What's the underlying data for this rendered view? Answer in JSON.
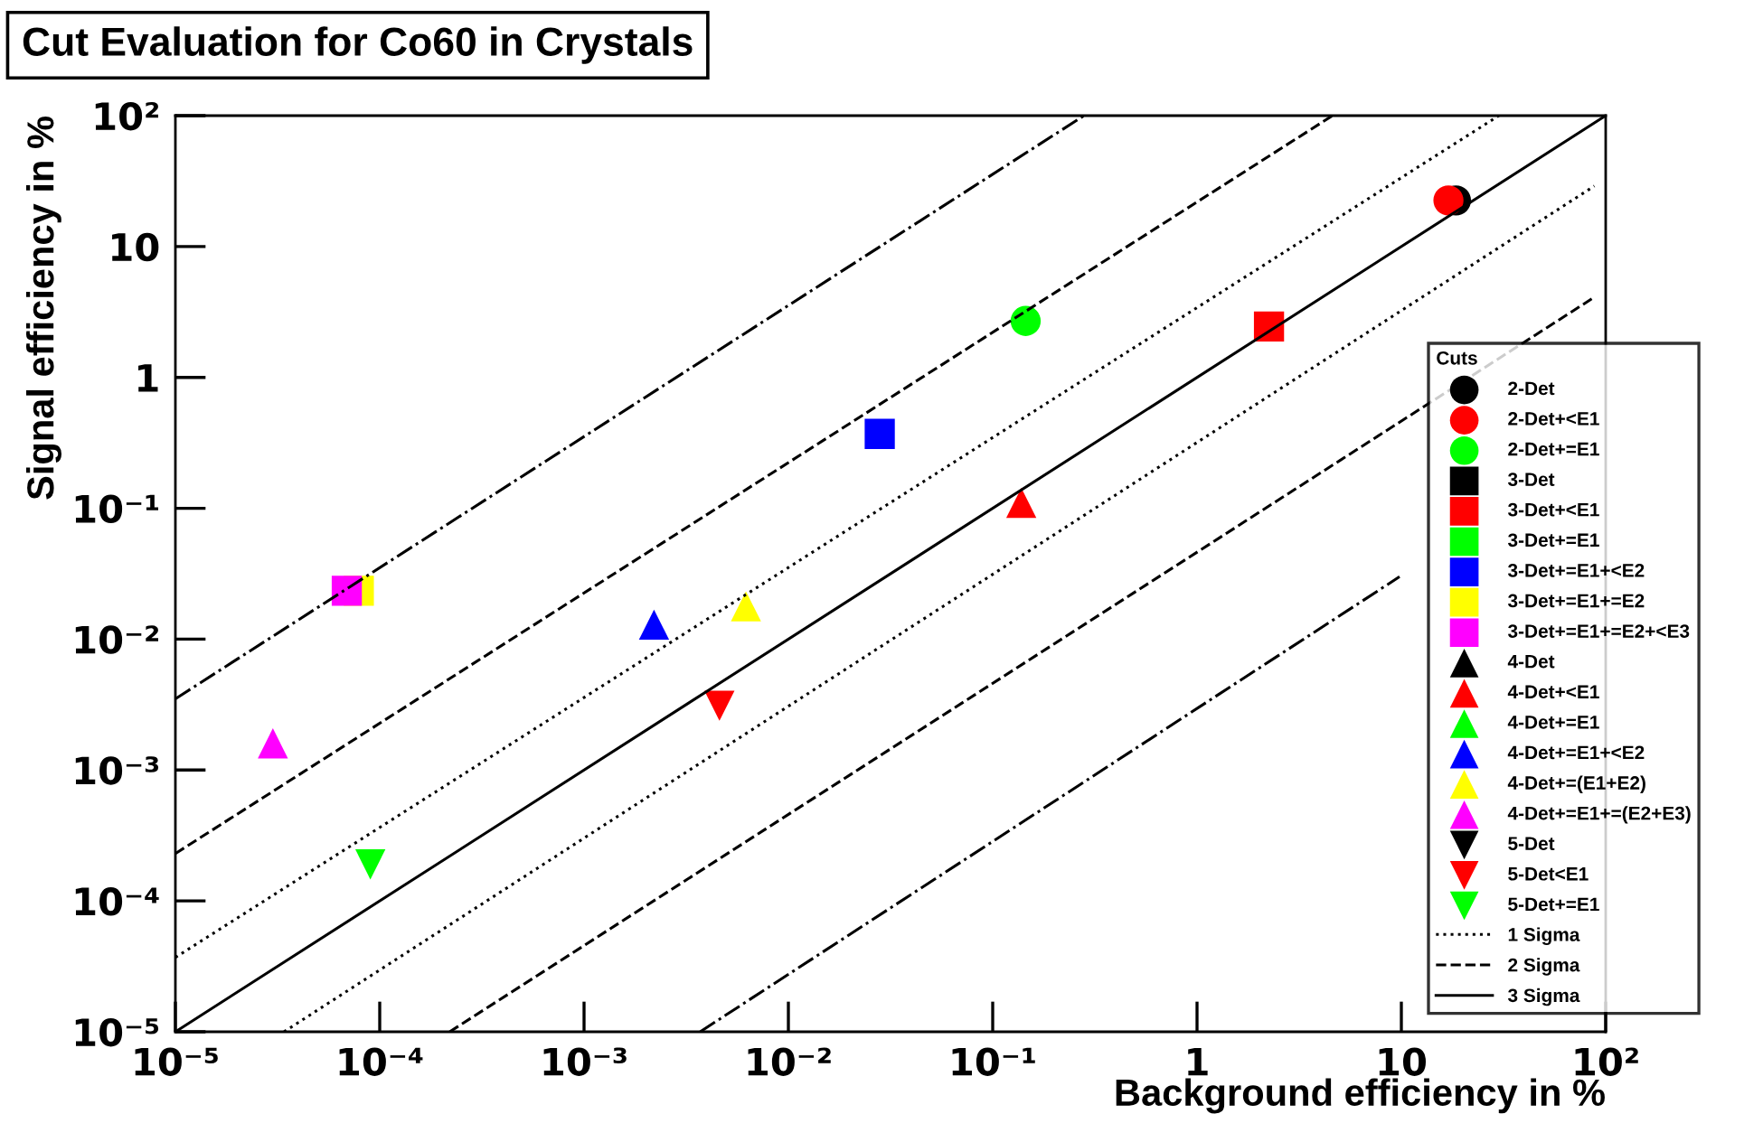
{
  "chart_data": {
    "type": "scatter",
    "title": "Cut Evaluation for Co60 in Crystals",
    "xlabel": "Background efficiency in %",
    "ylabel": "Signal efficiency in %",
    "legend_title": "Cuts",
    "log": "xy",
    "grid": false,
    "legend": "right",
    "xlim": [
      1e-05,
      100
    ],
    "ylim": [
      1e-05,
      100
    ],
    "xticks": [
      {
        "value": 1e-05,
        "label": "10⁻⁵"
      },
      {
        "value": 0.0001,
        "label": "10⁻⁴"
      },
      {
        "value": 0.001,
        "label": "10⁻³"
      },
      {
        "value": 0.01,
        "label": "10⁻²"
      },
      {
        "value": 0.1,
        "label": "10⁻¹"
      },
      1,
      10,
      {
        "value": 100,
        "label": "10²"
      }
    ],
    "yticks": [
      {
        "value": 1e-05,
        "label": "10⁻⁵"
      },
      {
        "value": 0.0001,
        "label": "10⁻⁴"
      },
      {
        "value": 0.001,
        "label": "10⁻³"
      },
      {
        "value": 0.01,
        "label": "10⁻²"
      },
      {
        "value": 0.1,
        "label": "10⁻¹"
      },
      1,
      10,
      {
        "value": 100,
        "label": "10²"
      }
    ],
    "series": [
      {
        "type": "line",
        "line_style": "dashdot",
        "color": "#000000",
        "x": [
          1e-05,
          0.28
        ],
        "values": [
          0.0035,
          100
        ]
      },
      {
        "type": "line",
        "line_style": "dashdot",
        "color": "#000000",
        "x": [
          0.0037,
          9.8
        ],
        "values": [
          1e-05,
          0.03
        ]
      },
      {
        "type": "line",
        "line_style": "dotted",
        "color": "#000000",
        "x": [
          3.4e-05,
          88
        ],
        "values": [
          1e-05,
          29
        ]
      },
      {
        "type": "line",
        "line_style": "dashed",
        "color": "#000000",
        "x": [
          0.00022,
          88
        ],
        "values": [
          1e-05,
          4.1
        ]
      },
      {
        "name": "2-Det",
        "marker": "circle",
        "color": "#000000",
        "x": [
          18.5
        ],
        "values": [
          22.5
        ]
      },
      {
        "name": "2-Det+<E1",
        "marker": "circle",
        "color": "#ff0000",
        "x": [
          17.0
        ],
        "values": [
          22.5
        ]
      },
      {
        "name": "2-Det+=E1",
        "marker": "circle",
        "color": "#00ff00",
        "x": [
          0.145
        ],
        "values": [
          2.7
        ]
      },
      {
        "name": "3-Det",
        "marker": "square",
        "color": "#000000"
      },
      {
        "name": "3-Det+<E1",
        "marker": "square",
        "color": "#ff0000",
        "x": [
          2.25
        ],
        "values": [
          2.45
        ]
      },
      {
        "name": "3-Det+=E1",
        "marker": "square",
        "color": "#00ff00"
      },
      {
        "name": "3-Det+=E1+<E2",
        "marker": "square",
        "color": "#0000ff",
        "x": [
          0.028
        ],
        "values": [
          0.37
        ]
      },
      {
        "name": "3-Det+=E1+=E2",
        "marker": "square",
        "color": "#ffff00",
        "x": [
          7.9e-05
        ],
        "values": [
          0.0234
        ]
      },
      {
        "name": "3-Det+=E1+=E2+<E3",
        "marker": "square",
        "color": "#ff00ff",
        "x": [
          6.9e-05
        ],
        "values": [
          0.0234
        ]
      },
      {
        "name": "4-Det",
        "marker": "triangle",
        "color": "#000000"
      },
      {
        "name": "4-Det+<E1",
        "marker": "triangle",
        "color": "#ff0000",
        "x": [
          0.138
        ],
        "values": [
          0.11
        ]
      },
      {
        "name": "4-Det+=E1",
        "marker": "triangle",
        "color": "#00ff00"
      },
      {
        "name": "4-Det+=E1+<E2",
        "marker": "triangle",
        "color": "#0000ff",
        "x": [
          0.0022
        ],
        "values": [
          0.0129
        ]
      },
      {
        "name": "4-Det+=(E1+E2)",
        "marker": "triangle",
        "color": "#ffff00",
        "x": [
          0.0062
        ],
        "values": [
          0.0178
        ]
      },
      {
        "name": "4-Det+=E1+=(E2+E3)",
        "marker": "triangle",
        "color": "#ff00ff",
        "x": [
          3e-05
        ],
        "values": [
          0.0016
        ]
      },
      {
        "name": "5-Det",
        "marker": "triangle_down",
        "color": "#000000"
      },
      {
        "name": "5-Det<E1",
        "marker": "triangle_down",
        "color": "#ff0000",
        "x": [
          0.0046
        ],
        "values": [
          0.0031
        ]
      },
      {
        "name": "5-Det+=E1",
        "marker": "triangle_down",
        "color": "#00ff00",
        "x": [
          9e-05
        ],
        "values": [
          0.00019
        ]
      },
      {
        "name": "1 Sigma",
        "type": "line",
        "line_style": "dotted",
        "color": "#000000",
        "x": [
          1e-05,
          30
        ],
        "values": [
          3.7e-05,
          100
        ]
      },
      {
        "name": "2 Sigma",
        "type": "line",
        "line_style": "dashed",
        "color": "#000000",
        "x": [
          1e-05,
          4.6
        ],
        "values": [
          0.00023,
          100
        ]
      },
      {
        "name": "3 Sigma",
        "type": "line",
        "line_style": "solid",
        "color": "#000000",
        "x": [
          1e-05,
          100
        ],
        "values": [
          1e-05,
          100
        ]
      }
    ]
  }
}
